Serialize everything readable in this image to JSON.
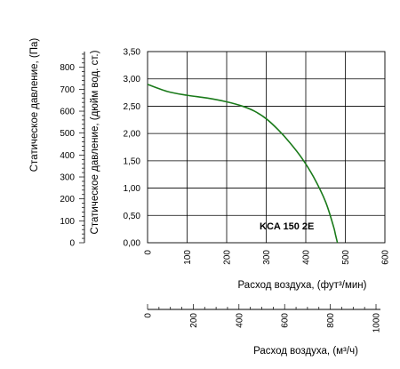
{
  "chart_data": {
    "type": "line",
    "annotation": "KCA 150 2E",
    "grid": true,
    "colors": {
      "curve": "#1a7a1a",
      "axis": "#000000",
      "grid": "#000000"
    },
    "axes": {
      "y_pressure_in": {
        "label": "Статическое давление, (дюйм вод. ст.)",
        "range": [
          0,
          3.5
        ],
        "ticks": [
          "0,00",
          "0,50",
          "1,00",
          "1,50",
          "2,00",
          "2,50",
          "3,00",
          "3,50"
        ]
      },
      "y_pressure_pa": {
        "label": "Статическое давление, (Па)",
        "range": [
          0,
          871.8
        ],
        "ticks": [
          "0",
          "100",
          "200",
          "300",
          "400",
          "500",
          "600",
          "700",
          "800"
        ]
      },
      "x_flow_cfm": {
        "label": "Расход воздуха, (фут³/мин)",
        "range": [
          0,
          600
        ],
        "ticks": [
          "0",
          "100",
          "200",
          "300",
          "400",
          "500",
          "600"
        ]
      },
      "x_flow_m3h": {
        "label": "Расход воздуха, (м³/ч)",
        "range": [
          0,
          1019.4
        ],
        "ticks": [
          "0",
          "200",
          "400",
          "600",
          "800",
          "1000"
        ]
      }
    },
    "series": [
      {
        "x": [
          0,
          50,
          100,
          150,
          200,
          240,
          270,
          300,
          330,
          360,
          390,
          420,
          450,
          470,
          475,
          480
        ],
        "y": [
          2.9,
          2.77,
          2.7,
          2.65,
          2.58,
          2.5,
          2.41,
          2.27,
          2.07,
          1.83,
          1.55,
          1.2,
          0.75,
          0.3,
          0.15,
          0
        ]
      }
    ]
  }
}
